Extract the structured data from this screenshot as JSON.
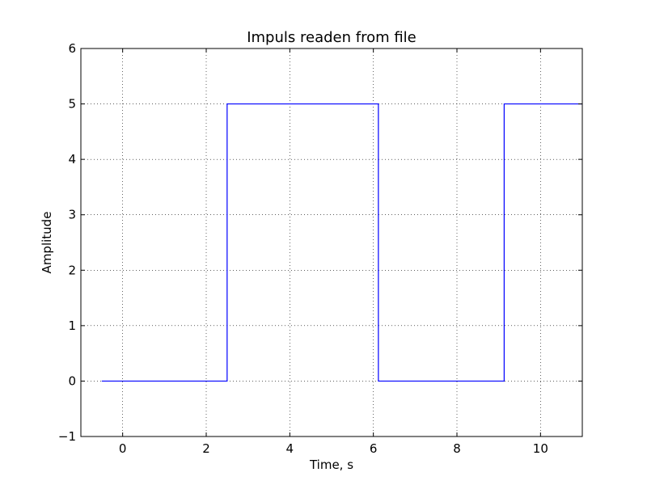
{
  "chart_data": {
    "type": "line",
    "title": "Impuls readen from file",
    "xlabel": "Time, s",
    "ylabel": "Amplitude",
    "xlim": [
      -1,
      11
    ],
    "ylim": [
      -1,
      6
    ],
    "grid": true,
    "xticks": [
      0,
      2,
      4,
      6,
      8,
      10
    ],
    "yticks": [
      -1,
      0,
      1,
      2,
      3,
      4,
      5,
      6
    ],
    "xtick_labels": [
      "0",
      "2",
      "4",
      "6",
      "8",
      "10"
    ],
    "ytick_labels": [
      "−1",
      "0",
      "1",
      "2",
      "3",
      "4",
      "5",
      "6"
    ],
    "series": [
      {
        "color": "#0000ff",
        "x": [
          -0.5,
          2.5,
          2.5,
          6.12,
          6.12,
          9.13,
          9.13,
          11
        ],
        "y": [
          0,
          0,
          5,
          5,
          0,
          0,
          5,
          5
        ]
      }
    ]
  }
}
